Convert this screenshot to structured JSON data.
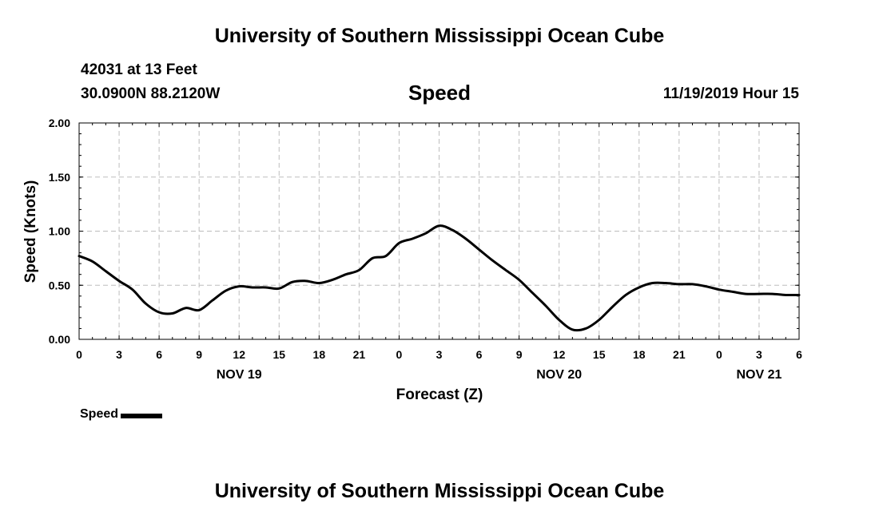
{
  "header": {
    "title": "University of Southern Mississippi Ocean Cube",
    "station": "42031 at 13 Feet",
    "coordinates": "30.0900N 88.2120W",
    "chart_name": "Speed",
    "datetime": "11/19/2019 Hour 15"
  },
  "footer": {
    "title": "University of Southern Mississippi Ocean Cube"
  },
  "legend": {
    "label": "Speed",
    "color": "#000000"
  },
  "chart_data": {
    "type": "line",
    "title": "Speed",
    "xlabel": "Forecast (Z)",
    "ylabel": "Speed (Knots)",
    "xlim": [
      0,
      54
    ],
    "ylim": [
      0,
      2
    ],
    "grid": true,
    "x_ticks": [
      {
        "x": 0,
        "label": "0"
      },
      {
        "x": 3,
        "label": "3"
      },
      {
        "x": 6,
        "label": "6"
      },
      {
        "x": 9,
        "label": "9"
      },
      {
        "x": 12,
        "label": "12"
      },
      {
        "x": 15,
        "label": "15"
      },
      {
        "x": 18,
        "label": "18"
      },
      {
        "x": 21,
        "label": "21"
      },
      {
        "x": 24,
        "label": "0"
      },
      {
        "x": 27,
        "label": "3"
      },
      {
        "x": 30,
        "label": "6"
      },
      {
        "x": 33,
        "label": "9"
      },
      {
        "x": 36,
        "label": "12"
      },
      {
        "x": 39,
        "label": "15"
      },
      {
        "x": 42,
        "label": "18"
      },
      {
        "x": 45,
        "label": "21"
      },
      {
        "x": 48,
        "label": "0"
      },
      {
        "x": 51,
        "label": "3"
      },
      {
        "x": 54,
        "label": "6"
      }
    ],
    "y_ticks": [
      {
        "y": 0,
        "label": "0.00"
      },
      {
        "y": 0.5,
        "label": "0.50"
      },
      {
        "y": 1.0,
        "label": "1.00"
      },
      {
        "y": 1.5,
        "label": "1.50"
      },
      {
        "y": 2.0,
        "label": "2.00"
      }
    ],
    "date_labels": [
      {
        "x": 12,
        "label": "NOV 19"
      },
      {
        "x": 36,
        "label": "NOV 20"
      },
      {
        "x": 51,
        "label": "NOV 21"
      }
    ],
    "series": [
      {
        "name": "Speed",
        "color": "#000000",
        "x": [
          0,
          1,
          2,
          3,
          4,
          5,
          6,
          7,
          8,
          9,
          10,
          11,
          12,
          13,
          14,
          15,
          16,
          17,
          18,
          19,
          20,
          21,
          22,
          23,
          24,
          25,
          26,
          27,
          28,
          29,
          30,
          31,
          32,
          33,
          34,
          35,
          36,
          37,
          38,
          39,
          40,
          41,
          42,
          43,
          44,
          45,
          46,
          47,
          48,
          49,
          50,
          51,
          52,
          53,
          54
        ],
        "values": [
          0.77,
          0.72,
          0.63,
          0.54,
          0.46,
          0.33,
          0.25,
          0.24,
          0.29,
          0.27,
          0.36,
          0.45,
          0.49,
          0.48,
          0.48,
          0.47,
          0.53,
          0.54,
          0.52,
          0.55,
          0.6,
          0.64,
          0.75,
          0.77,
          0.89,
          0.93,
          0.98,
          1.05,
          1.01,
          0.93,
          0.83,
          0.73,
          0.64,
          0.55,
          0.43,
          0.31,
          0.18,
          0.09,
          0.1,
          0.18,
          0.3,
          0.41,
          0.48,
          0.52,
          0.52,
          0.51,
          0.51,
          0.49,
          0.46,
          0.44,
          0.42,
          0.42,
          0.42,
          0.41,
          0.41
        ]
      }
    ]
  }
}
